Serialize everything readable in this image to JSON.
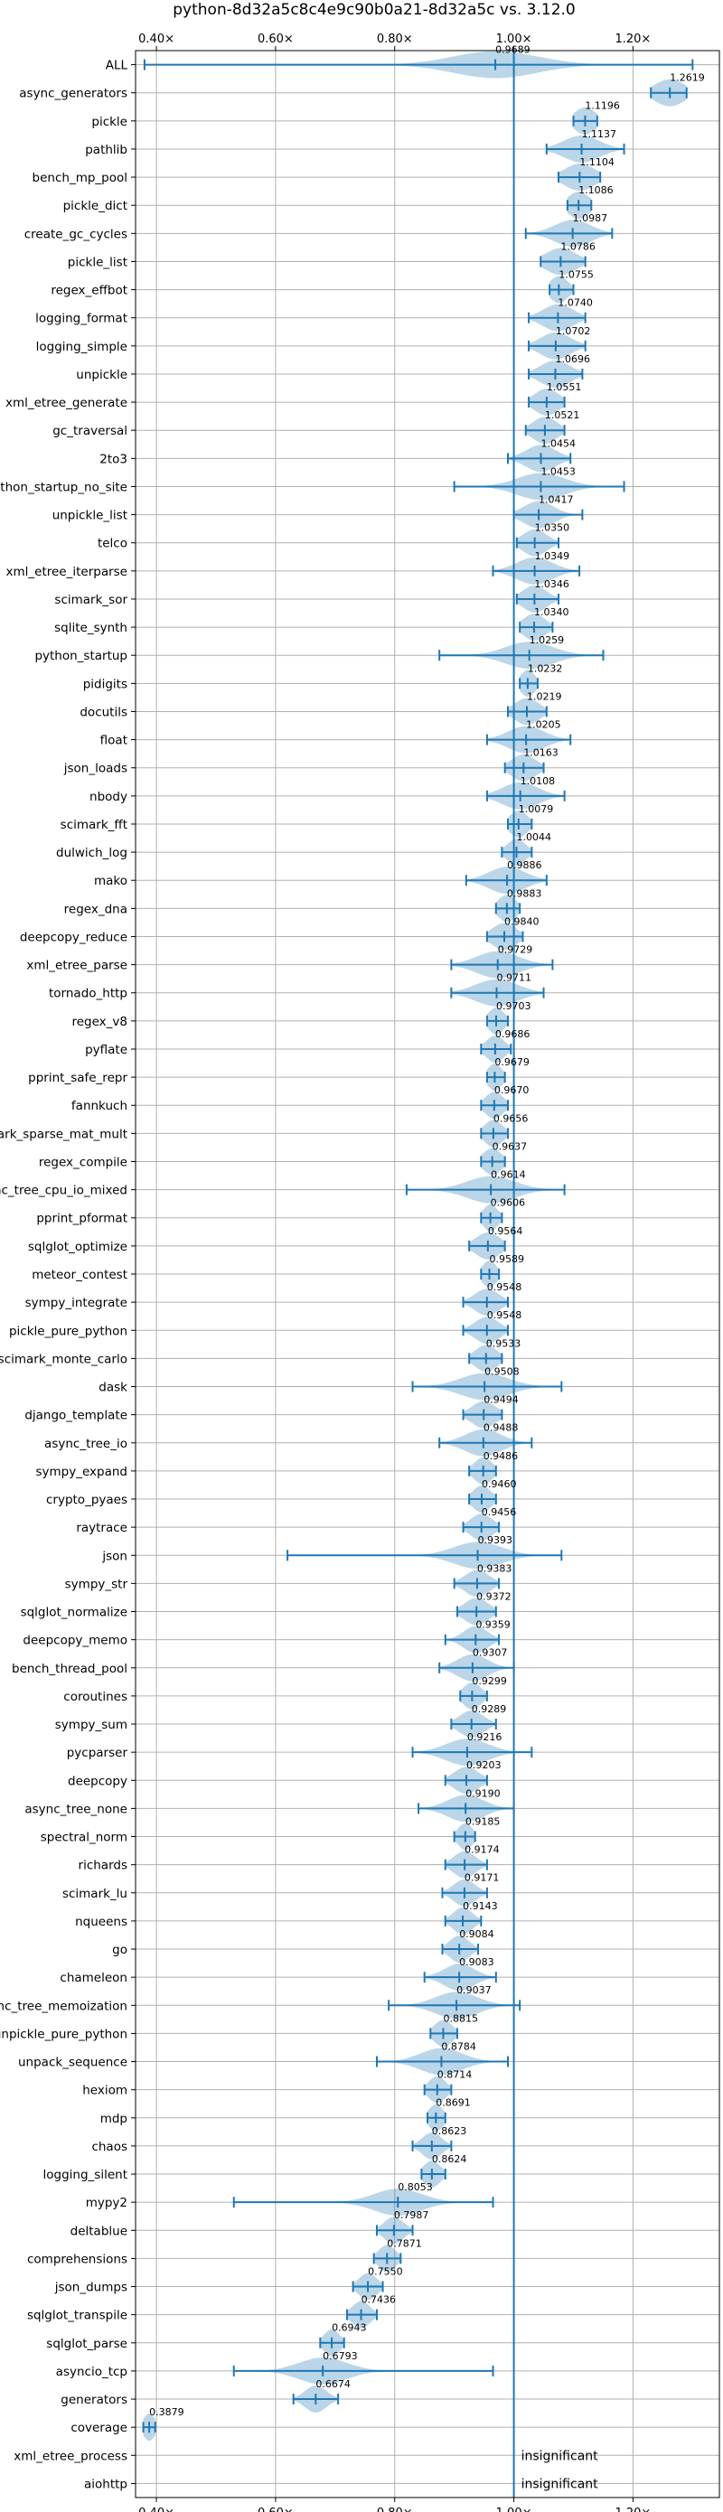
{
  "chart_data": {
    "type": "violin",
    "title": "python-8d32a5c8c4e9c90b0a21-8d32a5c vs. 3.12.0",
    "xlabel": "",
    "ylabel": "",
    "xlim": [
      0.365,
      1.345
    ],
    "x_ticks": [
      0.4,
      0.6,
      0.8,
      1.0,
      1.2
    ],
    "x_tick_labels": [
      "0.40×",
      "0.60×",
      "0.80×",
      "1.00×",
      "1.20×"
    ],
    "reference_line": 1.0,
    "grid": true,
    "benchmarks": [
      {
        "name": "ALL",
        "value": 0.9689,
        "min": 0.38,
        "max": 1.3,
        "spread": 0.07
      },
      {
        "name": "async_generators",
        "value": 1.2619,
        "min": 1.23,
        "max": 1.29,
        "spread": 0.025
      },
      {
        "name": "pickle",
        "value": 1.1196,
        "min": 1.1,
        "max": 1.14,
        "spread": 0.018
      },
      {
        "name": "pathlib",
        "value": 1.1137,
        "min": 1.055,
        "max": 1.185,
        "spread": 0.03
      },
      {
        "name": "bench_mp_pool",
        "value": 1.1104,
        "min": 1.075,
        "max": 1.145,
        "spread": 0.025
      },
      {
        "name": "pickle_dict",
        "value": 1.1086,
        "min": 1.09,
        "max": 1.13,
        "spread": 0.018
      },
      {
        "name": "create_gc_cycles",
        "value": 1.0987,
        "min": 1.02,
        "max": 1.165,
        "spread": 0.03
      },
      {
        "name": "pickle_list",
        "value": 1.0786,
        "min": 1.045,
        "max": 1.12,
        "spread": 0.025
      },
      {
        "name": "regex_effbot",
        "value": 1.0755,
        "min": 1.06,
        "max": 1.1,
        "spread": 0.015
      },
      {
        "name": "logging_format",
        "value": 1.074,
        "min": 1.025,
        "max": 1.12,
        "spread": 0.025
      },
      {
        "name": "logging_simple",
        "value": 1.0702,
        "min": 1.025,
        "max": 1.12,
        "spread": 0.025
      },
      {
        "name": "unpickle",
        "value": 1.0696,
        "min": 1.025,
        "max": 1.115,
        "spread": 0.025
      },
      {
        "name": "xml_etree_generate",
        "value": 1.0551,
        "min": 1.025,
        "max": 1.085,
        "spread": 0.02
      },
      {
        "name": "gc_traversal",
        "value": 1.0521,
        "min": 1.02,
        "max": 1.085,
        "spread": 0.02
      },
      {
        "name": "2to3",
        "value": 1.0454,
        "min": 0.99,
        "max": 1.095,
        "spread": 0.025
      },
      {
        "name": "python_startup_no_site",
        "value": 1.0453,
        "min": 0.9,
        "max": 1.185,
        "spread": 0.04
      },
      {
        "name": "unpickle_list",
        "value": 1.0417,
        "min": 1.0,
        "max": 1.115,
        "spread": 0.025
      },
      {
        "name": "telco",
        "value": 1.035,
        "min": 1.005,
        "max": 1.075,
        "spread": 0.02
      },
      {
        "name": "xml_etree_iterparse",
        "value": 1.0349,
        "min": 0.965,
        "max": 1.11,
        "spread": 0.03
      },
      {
        "name": "scimark_sor",
        "value": 1.0346,
        "min": 1.005,
        "max": 1.075,
        "spread": 0.02
      },
      {
        "name": "sqlite_synth",
        "value": 1.034,
        "min": 1.01,
        "max": 1.065,
        "spread": 0.018
      },
      {
        "name": "python_startup",
        "value": 1.0259,
        "min": 0.875,
        "max": 1.15,
        "spread": 0.04
      },
      {
        "name": "pidigits",
        "value": 1.0232,
        "min": 1.01,
        "max": 1.04,
        "spread": 0.012
      },
      {
        "name": "docutils",
        "value": 1.0219,
        "min": 0.99,
        "max": 1.055,
        "spread": 0.02
      },
      {
        "name": "float",
        "value": 1.0205,
        "min": 0.955,
        "max": 1.095,
        "spread": 0.03
      },
      {
        "name": "json_loads",
        "value": 1.0163,
        "min": 0.985,
        "max": 1.05,
        "spread": 0.02
      },
      {
        "name": "nbody",
        "value": 1.0108,
        "min": 0.955,
        "max": 1.085,
        "spread": 0.03
      },
      {
        "name": "scimark_fft",
        "value": 1.0079,
        "min": 0.99,
        "max": 1.03,
        "spread": 0.015
      },
      {
        "name": "dulwich_log",
        "value": 1.0044,
        "min": 0.98,
        "max": 1.03,
        "spread": 0.015
      },
      {
        "name": "mako",
        "value": 0.9886,
        "min": 0.92,
        "max": 1.055,
        "spread": 0.03
      },
      {
        "name": "regex_dna",
        "value": 0.9883,
        "min": 0.97,
        "max": 1.01,
        "spread": 0.015
      },
      {
        "name": "deepcopy_reduce",
        "value": 0.984,
        "min": 0.955,
        "max": 1.015,
        "spread": 0.02
      },
      {
        "name": "xml_etree_parse",
        "value": 0.9729,
        "min": 0.895,
        "max": 1.065,
        "spread": 0.035
      },
      {
        "name": "tornado_http",
        "value": 0.9711,
        "min": 0.895,
        "max": 1.05,
        "spread": 0.035
      },
      {
        "name": "regex_v8",
        "value": 0.9703,
        "min": 0.955,
        "max": 0.99,
        "spread": 0.013
      },
      {
        "name": "pyflate",
        "value": 0.9686,
        "min": 0.945,
        "max": 0.995,
        "spread": 0.015
      },
      {
        "name": "pprint_safe_repr",
        "value": 0.9679,
        "min": 0.955,
        "max": 0.985,
        "spread": 0.012
      },
      {
        "name": "fannkuch",
        "value": 0.967,
        "min": 0.945,
        "max": 0.99,
        "spread": 0.015
      },
      {
        "name": "scimark_sparse_mat_mult",
        "value": 0.9656,
        "min": 0.945,
        "max": 0.99,
        "spread": 0.015
      },
      {
        "name": "regex_compile",
        "value": 0.9637,
        "min": 0.945,
        "max": 0.985,
        "spread": 0.015
      },
      {
        "name": "async_tree_cpu_io_mixed",
        "value": 0.9614,
        "min": 0.82,
        "max": 1.085,
        "spread": 0.04
      },
      {
        "name": "pprint_pformat",
        "value": 0.9606,
        "min": 0.945,
        "max": 0.98,
        "spread": 0.012
      },
      {
        "name": "sqlglot_optimize",
        "value": 0.9564,
        "min": 0.925,
        "max": 0.985,
        "spread": 0.02
      },
      {
        "name": "meteor_contest",
        "value": 0.9589,
        "min": 0.945,
        "max": 0.975,
        "spread": 0.012
      },
      {
        "name": "sympy_integrate",
        "value": 0.9548,
        "min": 0.915,
        "max": 0.99,
        "spread": 0.02
      },
      {
        "name": "pickle_pure_python",
        "value": 0.9548,
        "min": 0.915,
        "max": 0.99,
        "spread": 0.02
      },
      {
        "name": "scimark_monte_carlo",
        "value": 0.9533,
        "min": 0.925,
        "max": 0.98,
        "spread": 0.018
      },
      {
        "name": "dask",
        "value": 0.9508,
        "min": 0.83,
        "max": 1.08,
        "spread": 0.04
      },
      {
        "name": "django_template",
        "value": 0.9494,
        "min": 0.915,
        "max": 0.98,
        "spread": 0.02
      },
      {
        "name": "async_tree_io",
        "value": 0.9488,
        "min": 0.875,
        "max": 1.03,
        "spread": 0.03
      },
      {
        "name": "sympy_expand",
        "value": 0.9486,
        "min": 0.925,
        "max": 0.97,
        "spread": 0.015
      },
      {
        "name": "crypto_pyaes",
        "value": 0.946,
        "min": 0.925,
        "max": 0.97,
        "spread": 0.015
      },
      {
        "name": "raytrace",
        "value": 0.9456,
        "min": 0.915,
        "max": 0.975,
        "spread": 0.018
      },
      {
        "name": "json",
        "value": 0.9393,
        "min": 0.62,
        "max": 1.08,
        "spread": 0.04
      },
      {
        "name": "sympy_str",
        "value": 0.9383,
        "min": 0.9,
        "max": 0.975,
        "spread": 0.02
      },
      {
        "name": "sqlglot_normalize",
        "value": 0.9372,
        "min": 0.905,
        "max": 0.97,
        "spread": 0.02
      },
      {
        "name": "deepcopy_memo",
        "value": 0.9359,
        "min": 0.885,
        "max": 0.975,
        "spread": 0.02
      },
      {
        "name": "bench_thread_pool",
        "value": 0.9307,
        "min": 0.875,
        "max": 1.0,
        "spread": 0.025
      },
      {
        "name": "coroutines",
        "value": 0.9299,
        "min": 0.91,
        "max": 0.955,
        "spread": 0.015
      },
      {
        "name": "sympy_sum",
        "value": 0.9289,
        "min": 0.895,
        "max": 0.97,
        "spread": 0.02
      },
      {
        "name": "pycparser",
        "value": 0.9216,
        "min": 0.83,
        "max": 1.03,
        "spread": 0.035
      },
      {
        "name": "deepcopy",
        "value": 0.9203,
        "min": 0.885,
        "max": 0.955,
        "spread": 0.02
      },
      {
        "name": "async_tree_none",
        "value": 0.919,
        "min": 0.84,
        "max": 1.0,
        "spread": 0.03
      },
      {
        "name": "spectral_norm",
        "value": 0.9185,
        "min": 0.9,
        "max": 0.935,
        "spread": 0.012
      },
      {
        "name": "richards",
        "value": 0.9174,
        "min": 0.885,
        "max": 0.955,
        "spread": 0.018
      },
      {
        "name": "scimark_lu",
        "value": 0.9171,
        "min": 0.88,
        "max": 0.955,
        "spread": 0.018
      },
      {
        "name": "nqueens",
        "value": 0.9143,
        "min": 0.885,
        "max": 0.945,
        "spread": 0.016
      },
      {
        "name": "go",
        "value": 0.9084,
        "min": 0.88,
        "max": 0.94,
        "spread": 0.016
      },
      {
        "name": "chameleon",
        "value": 0.9083,
        "min": 0.85,
        "max": 0.97,
        "spread": 0.025
      },
      {
        "name": "async_tree_memoization",
        "value": 0.9037,
        "min": 0.79,
        "max": 1.01,
        "spread": 0.035
      },
      {
        "name": "unpickle_pure_python",
        "value": 0.8815,
        "min": 0.86,
        "max": 0.905,
        "spread": 0.015
      },
      {
        "name": "unpack_sequence",
        "value": 0.8784,
        "min": 0.77,
        "max": 0.99,
        "spread": 0.035
      },
      {
        "name": "hexiom",
        "value": 0.8714,
        "min": 0.85,
        "max": 0.895,
        "spread": 0.014
      },
      {
        "name": "mdp",
        "value": 0.8691,
        "min": 0.855,
        "max": 0.885,
        "spread": 0.012
      },
      {
        "name": "chaos",
        "value": 0.8623,
        "min": 0.83,
        "max": 0.895,
        "spread": 0.016
      },
      {
        "name": "logging_silent",
        "value": 0.8624,
        "min": 0.845,
        "max": 0.885,
        "spread": 0.014
      },
      {
        "name": "mypy2",
        "value": 0.8053,
        "min": 0.53,
        "max": 0.965,
        "spread": 0.04
      },
      {
        "name": "deltablue",
        "value": 0.7987,
        "min": 0.77,
        "max": 0.83,
        "spread": 0.016
      },
      {
        "name": "comprehensions",
        "value": 0.7871,
        "min": 0.765,
        "max": 0.81,
        "spread": 0.014
      },
      {
        "name": "json_dumps",
        "value": 0.755,
        "min": 0.73,
        "max": 0.78,
        "spread": 0.015
      },
      {
        "name": "sqlglot_transpile",
        "value": 0.7436,
        "min": 0.72,
        "max": 0.77,
        "spread": 0.015
      },
      {
        "name": "sqlglot_parse",
        "value": 0.6943,
        "min": 0.675,
        "max": 0.715,
        "spread": 0.013
      },
      {
        "name": "asyncio_tcp",
        "value": 0.6793,
        "min": 0.53,
        "max": 0.965,
        "spread": 0.04
      },
      {
        "name": "generators",
        "value": 0.6674,
        "min": 0.63,
        "max": 0.705,
        "spread": 0.018
      },
      {
        "name": "coverage",
        "value": 0.3879,
        "min": 0.378,
        "max": 0.398,
        "spread": 0.01
      },
      {
        "name": "xml_etree_process",
        "value": null,
        "note": "insignificant"
      },
      {
        "name": "aiohttp",
        "value": null,
        "note": "insignificant"
      }
    ]
  }
}
